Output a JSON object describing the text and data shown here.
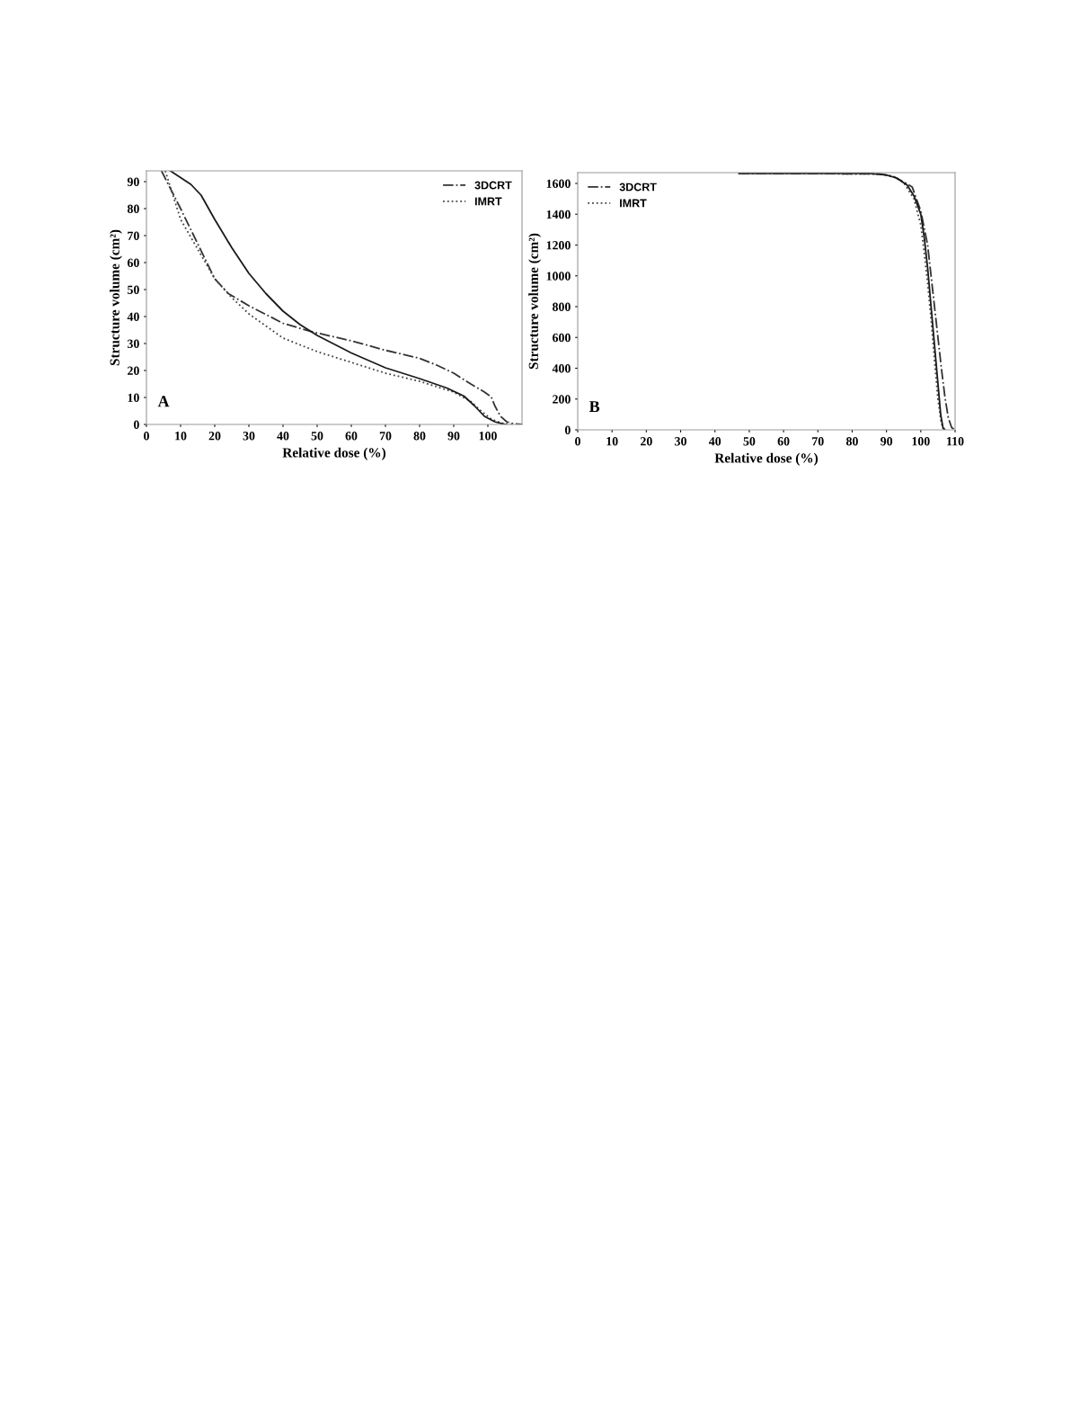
{
  "chart_data": [
    {
      "type": "line",
      "xlabel": "Relative dose (%)",
      "ylabel": "Structure volume (cm²)",
      "xlim": [
        0,
        110
      ],
      "ylim": [
        0,
        94
      ],
      "xticks": [
        0,
        10,
        20,
        30,
        40,
        50,
        60,
        70,
        80,
        90,
        100
      ],
      "yticks": [
        0,
        10,
        20,
        30,
        40,
        50,
        60,
        70,
        80,
        90
      ],
      "grid": false,
      "legend": "top right",
      "annotations": [
        "A"
      ],
      "series": [
        {
          "name": "3DCRT",
          "color": "#333333",
          "line_style": "dashdot",
          "x": [
            4.4,
            10,
            15,
            20,
            24,
            30,
            40,
            48,
            60,
            70,
            80,
            85,
            90,
            95,
            99,
            101,
            102,
            103.7,
            105.5,
            107.7,
            110
          ],
          "values": [
            94,
            80,
            67,
            54,
            48.5,
            44,
            37.5,
            34.5,
            31,
            27.5,
            24.5,
            22,
            19,
            15,
            12,
            10.2,
            7,
            3,
            1,
            0.2,
            0
          ]
        },
        {
          "name": "IMRT",
          "color": "#444444",
          "line_style": "dotted",
          "x": [
            5.5,
            10,
            15,
            20,
            25,
            30,
            40,
            50,
            60,
            70,
            80,
            90,
            95,
            98,
            101,
            104,
            107
          ],
          "values": [
            94,
            76,
            65,
            54,
            47,
            41,
            32,
            27,
            23,
            19,
            16,
            12,
            8.5,
            5,
            2,
            0.5,
            0
          ]
        },
        {
          "color": "#1a1a1a",
          "line_style": "solid",
          "x": [
            7,
            10,
            13,
            16,
            20,
            25,
            30,
            35,
            40,
            45,
            50,
            60,
            70,
            80,
            88,
            93,
            96,
            99,
            102,
            105
          ],
          "values": [
            94,
            91.5,
            89,
            85,
            76,
            65.5,
            56,
            48.5,
            42,
            37,
            33,
            26.5,
            21,
            17,
            13.5,
            10.5,
            7,
            3,
            1,
            0
          ]
        }
      ]
    },
    {
      "type": "line",
      "xlabel": "Relative dose (%)",
      "ylabel": "Structure volume (cm²)",
      "xlim": [
        0,
        110
      ],
      "ylim": [
        0,
        1670
      ],
      "xticks": [
        0,
        10,
        20,
        30,
        40,
        50,
        60,
        70,
        80,
        90,
        100,
        110
      ],
      "yticks": [
        0,
        200,
        400,
        600,
        800,
        1000,
        1200,
        1400,
        1600
      ],
      "grid": false,
      "legend": "top left",
      "annotations": [
        "B"
      ],
      "series": [
        {
          "name": "3DCRT",
          "color": "#333333",
          "line_style": "dashdot",
          "x": [
            47,
            88,
            92,
            95,
            97.5,
            100,
            102,
            103,
            104,
            105,
            106,
            107,
            108,
            109,
            110
          ],
          "values": [
            1665,
            1662,
            1645,
            1610,
            1577,
            1420,
            1200,
            1000,
            800,
            600,
            400,
            220,
            80,
            15,
            0
          ]
        },
        {
          "name": "IMRT",
          "color": "#444444",
          "line_style": "dotted",
          "x": [
            47,
            88,
            92,
            95,
            98,
            100,
            101,
            102,
            103,
            104,
            105,
            106,
            107
          ],
          "values": [
            1665,
            1662,
            1645,
            1605,
            1500,
            1330,
            1150,
            950,
            720,
            450,
            200,
            40,
            0
          ]
        },
        {
          "color": "#1a1a1a",
          "line_style": "solid",
          "x": [
            47,
            85,
            90,
            93,
            96,
            98,
            100,
            101,
            102,
            103,
            104,
            105,
            105.8,
            106.5,
            107
          ],
          "values": [
            1665,
            1665,
            1655,
            1635,
            1590,
            1520,
            1400,
            1250,
            1050,
            800,
            550,
            300,
            100,
            10,
            0
          ]
        }
      ]
    }
  ]
}
